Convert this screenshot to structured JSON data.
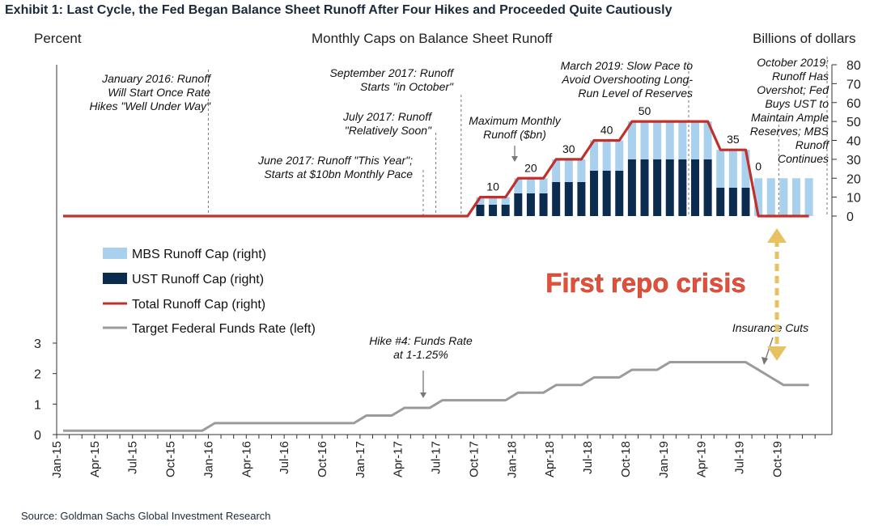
{
  "exhibit_title": "Exhibit 1: Last Cycle, the Fed Began Balance Sheet Runoff After Four Hikes and Proceeded Quite Cautiously",
  "source": "Source: Goldman Sachs Global Investment Research",
  "overlay_label": "First repo crisis",
  "colors": {
    "mbs": "#a9d0ec",
    "ust": "#0b2b4f",
    "total": "#c0302c",
    "rate": "#9b9b9b",
    "overlay": "#e3503a",
    "arrow": "#e8c160"
  },
  "chart_data": {
    "type": "bar",
    "title": "Monthly  Caps on Balance Sheet Runoff",
    "ylabel_left": "Percent",
    "ylabel_right": "Billions of dollars",
    "yright_ticks": [
      0,
      10,
      20,
      30,
      40,
      50,
      60,
      70,
      80
    ],
    "yleft_ticks": [
      0,
      1,
      2,
      3
    ],
    "ylim_right": [
      0,
      80
    ],
    "ylim_left": [
      0,
      3
    ],
    "x_ticks": [
      "Jan-15",
      "Apr-15",
      "Jul-15",
      "Oct-15",
      "Jan-16",
      "Apr-16",
      "Jul-16",
      "Oct-16",
      "Jan-17",
      "Apr-17",
      "Jul-17",
      "Oct-17",
      "Jan-18",
      "Apr-18",
      "Jul-18",
      "Oct-18",
      "Jan-19",
      "Apr-19",
      "Jul-19",
      "Oct-19"
    ],
    "legend": [
      "MBS Runoff Cap (right)",
      "UST Runoff Cap (right)",
      "Total Runoff Cap (right)",
      "Target Federal Funds Rate (left)"
    ],
    "bars": [
      {
        "date": "2017-10",
        "ust": 6,
        "mbs": 4
      },
      {
        "date": "2017-11",
        "ust": 6,
        "mbs": 4
      },
      {
        "date": "2017-12",
        "ust": 6,
        "mbs": 4
      },
      {
        "date": "2018-01",
        "ust": 12,
        "mbs": 8
      },
      {
        "date": "2018-02",
        "ust": 12,
        "mbs": 8
      },
      {
        "date": "2018-03",
        "ust": 12,
        "mbs": 8
      },
      {
        "date": "2018-04",
        "ust": 18,
        "mbs": 12
      },
      {
        "date": "2018-05",
        "ust": 18,
        "mbs": 12
      },
      {
        "date": "2018-06",
        "ust": 18,
        "mbs": 12
      },
      {
        "date": "2018-07",
        "ust": 24,
        "mbs": 16
      },
      {
        "date": "2018-08",
        "ust": 24,
        "mbs": 16
      },
      {
        "date": "2018-09",
        "ust": 24,
        "mbs": 16
      },
      {
        "date": "2018-10",
        "ust": 30,
        "mbs": 20
      },
      {
        "date": "2018-11",
        "ust": 30,
        "mbs": 20
      },
      {
        "date": "2018-12",
        "ust": 30,
        "mbs": 20
      },
      {
        "date": "2019-01",
        "ust": 30,
        "mbs": 20
      },
      {
        "date": "2019-02",
        "ust": 30,
        "mbs": 20
      },
      {
        "date": "2019-03",
        "ust": 30,
        "mbs": 20
      },
      {
        "date": "2019-04",
        "ust": 30,
        "mbs": 20
      },
      {
        "date": "2019-05",
        "ust": 15,
        "mbs": 20
      },
      {
        "date": "2019-06",
        "ust": 15,
        "mbs": 20
      },
      {
        "date": "2019-07",
        "ust": 15,
        "mbs": 20
      },
      {
        "date": "2019-08",
        "ust": 0,
        "mbs": 20
      },
      {
        "date": "2019-09",
        "ust": 0,
        "mbs": 20
      },
      {
        "date": "2019-10",
        "ust": 0,
        "mbs": 20
      },
      {
        "date": "2019-11",
        "ust": 0,
        "mbs": 20
      },
      {
        "date": "2019-12",
        "ust": 0,
        "mbs": 20
      }
    ],
    "total_cap": [
      {
        "date": "2015-01",
        "v": 0
      },
      {
        "date": "2017-09",
        "v": 0
      },
      {
        "date": "2017-10",
        "v": 10
      },
      {
        "date": "2017-12",
        "v": 10
      },
      {
        "date": "2018-01",
        "v": 20
      },
      {
        "date": "2018-03",
        "v": 20
      },
      {
        "date": "2018-04",
        "v": 30
      },
      {
        "date": "2018-06",
        "v": 30
      },
      {
        "date": "2018-07",
        "v": 40
      },
      {
        "date": "2018-09",
        "v": 40
      },
      {
        "date": "2018-10",
        "v": 50
      },
      {
        "date": "2019-04",
        "v": 50
      },
      {
        "date": "2019-05",
        "v": 35
      },
      {
        "date": "2019-07",
        "v": 35
      },
      {
        "date": "2019-08",
        "v": 0
      },
      {
        "date": "2019-12",
        "v": 0
      }
    ],
    "fed_funds": [
      {
        "date": "2015-01",
        "v": 0.125
      },
      {
        "date": "2015-12",
        "v": 0.125
      },
      {
        "date": "2016-01",
        "v": 0.375
      },
      {
        "date": "2016-12",
        "v": 0.375
      },
      {
        "date": "2017-01",
        "v": 0.625
      },
      {
        "date": "2017-03",
        "v": 0.625
      },
      {
        "date": "2017-04",
        "v": 0.875
      },
      {
        "date": "2017-06",
        "v": 0.875
      },
      {
        "date": "2017-07",
        "v": 1.125
      },
      {
        "date": "2017-12",
        "v": 1.125
      },
      {
        "date": "2018-01",
        "v": 1.375
      },
      {
        "date": "2018-03",
        "v": 1.375
      },
      {
        "date": "2018-04",
        "v": 1.625
      },
      {
        "date": "2018-06",
        "v": 1.625
      },
      {
        "date": "2018-07",
        "v": 1.875
      },
      {
        "date": "2018-09",
        "v": 1.875
      },
      {
        "date": "2018-10",
        "v": 2.125
      },
      {
        "date": "2018-12",
        "v": 2.125
      },
      {
        "date": "2019-01",
        "v": 2.375
      },
      {
        "date": "2019-07",
        "v": 2.375
      },
      {
        "date": "2019-08",
        "v": 2.125
      },
      {
        "date": "2019-09",
        "v": 1.875
      },
      {
        "date": "2019-10",
        "v": 1.625
      },
      {
        "date": "2019-12",
        "v": 1.625
      }
    ],
    "step_labels": [
      {
        "date": "2017-11",
        "v": 10,
        "label": "10"
      },
      {
        "date": "2018-02",
        "v": 20,
        "label": "20"
      },
      {
        "date": "2018-05",
        "v": 30,
        "label": "30"
      },
      {
        "date": "2018-08",
        "v": 40,
        "label": "40"
      },
      {
        "date": "2018-11",
        "v": 50,
        "label": "50"
      },
      {
        "date": "2019-06",
        "v": 35,
        "label": "35"
      },
      {
        "date": "2019-08",
        "v": 0,
        "label": "0"
      }
    ],
    "event_lines": [
      "2016-01",
      "2017-06",
      "2017-07",
      "2017-09",
      "2019-03",
      "2019-10"
    ],
    "annotations": [
      {
        "lines": [
          "January 2016: Runoff",
          "Will Start Once Rate",
          "Hikes \"Well Under Way\""
        ]
      },
      {
        "lines": [
          "June 2017: Runoff \"This Year\";",
          "Starts at $10bn Monthly Pace"
        ]
      },
      {
        "lines": [
          "July 2017: Runoff",
          "\"Relatively Soon\""
        ]
      },
      {
        "lines": [
          "September 2017: Runoff",
          "Starts \"in October\""
        ]
      },
      {
        "lines": [
          "Maximum  Monthly",
          "Runoff ($bn)"
        ]
      },
      {
        "lines": [
          "March 2019: Slow Pace to",
          "Avoid Overshooting Long-",
          "Run Level of Reserves"
        ]
      },
      {
        "lines": [
          "October 2019:",
          "Runoff Has",
          "Overshot; Fed",
          "Buys UST to",
          "Maintain Ample",
          "Reserves; MBS",
          "Runoff",
          "Continues"
        ]
      },
      {
        "lines": [
          "Hike #4: Funds Rate",
          "at 1-1.25%"
        ]
      },
      {
        "lines": [
          "Insurance Cuts"
        ]
      }
    ]
  }
}
